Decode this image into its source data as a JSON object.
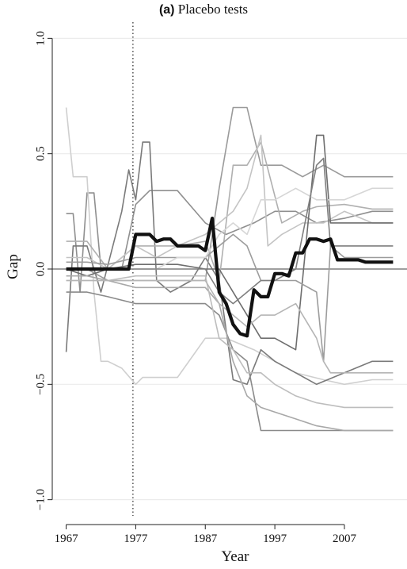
{
  "chart_data": {
    "type": "line",
    "title_prefix": "(a)",
    "title": "Placebo tests",
    "xlabel": "Year",
    "ylabel": "Gap",
    "xlim": [
      1965,
      2016
    ],
    "ylim": [
      -1.07,
      1.07
    ],
    "x_ticks": [
      1967,
      1977,
      1987,
      1997,
      2007
    ],
    "x_tick_labels": [
      "1967",
      "1977",
      "1987",
      "1997",
      "2007"
    ],
    "y_ticks": [
      -1.0,
      -0.5,
      0.0,
      0.5,
      1.0
    ],
    "y_tick_labels": [
      "−1.0",
      "−0.5",
      "0.0",
      "0.5",
      "1.0"
    ],
    "grid": true,
    "reference_lines": {
      "horizontal_y": 0.0,
      "vertical_x": 1976.6
    },
    "main_series": {
      "x": [
        1967,
        1968,
        1969,
        1970,
        1971,
        1972,
        1973,
        1974,
        1975,
        1976,
        1977,
        1978,
        1979,
        1980,
        1981,
        1982,
        1983,
        1984,
        1985,
        1986,
        1987,
        1988,
        1989,
        1990,
        1991,
        1992,
        1993,
        1994,
        1995,
        1996,
        1997,
        1998,
        1999,
        2000,
        2001,
        2002,
        2003,
        2004,
        2005,
        2006,
        2007,
        2008,
        2009,
        2010,
        2011,
        2012,
        2013,
        2014
      ],
      "values": [
        0.0,
        0.0,
        0.0,
        0.0,
        0.0,
        0.0,
        0.0,
        0.0,
        0.0,
        0.0,
        0.15,
        0.15,
        0.15,
        0.12,
        0.13,
        0.13,
        0.1,
        0.1,
        0.1,
        0.1,
        0.08,
        0.22,
        -0.1,
        -0.15,
        -0.24,
        -0.28,
        -0.29,
        -0.09,
        -0.12,
        -0.12,
        -0.02,
        -0.02,
        -0.03,
        0.07,
        0.07,
        0.13,
        0.13,
        0.12,
        0.13,
        0.04,
        0.04,
        0.04,
        0.04,
        0.03,
        0.03,
        0.03,
        0.03,
        0.03
      ]
    },
    "placebo_series": [
      {
        "color": "#8f8f8f",
        "points": [
          [
            1967,
            0.24
          ],
          [
            1968,
            0.24
          ],
          [
            1969,
            -0.1
          ],
          [
            1970,
            0.33
          ],
          [
            1971,
            0.33
          ],
          [
            1972,
            0.0
          ],
          [
            1973,
            0.0
          ],
          [
            1974,
            0.0
          ],
          [
            1975,
            0.0
          ],
          [
            1977,
            0.28
          ],
          [
            1979,
            0.34
          ],
          [
            1983,
            0.34
          ],
          [
            1987,
            0.2
          ],
          [
            1990,
            0.15
          ],
          [
            1994,
            0.2
          ],
          [
            1997,
            0.25
          ],
          [
            2000,
            0.25
          ],
          [
            2003,
            0.2
          ],
          [
            2007,
            0.22
          ],
          [
            2011,
            0.25
          ],
          [
            2014,
            0.25
          ]
        ]
      },
      {
        "color": "#cfcfcf",
        "points": [
          [
            1967,
            0.7
          ],
          [
            1968,
            0.4
          ],
          [
            1970,
            0.4
          ],
          [
            1971,
            -0.1
          ],
          [
            1972,
            -0.4
          ],
          [
            1973,
            -0.4
          ],
          [
            1975,
            -0.43
          ],
          [
            1977,
            -0.5
          ],
          [
            1978,
            -0.47
          ],
          [
            1980,
            -0.47
          ],
          [
            1983,
            -0.47
          ],
          [
            1987,
            -0.3
          ],
          [
            1990,
            -0.3
          ],
          [
            1994,
            -0.35
          ],
          [
            1997,
            -0.4
          ],
          [
            2000,
            -0.45
          ],
          [
            2004,
            -0.48
          ],
          [
            2007,
            -0.5
          ],
          [
            2011,
            -0.48
          ],
          [
            2014,
            -0.48
          ]
        ]
      },
      {
        "color": "#7a7a7a",
        "points": [
          [
            1967,
            -0.36
          ],
          [
            1968,
            0.1
          ],
          [
            1970,
            0.1
          ],
          [
            1972,
            -0.1
          ],
          [
            1975,
            0.25
          ],
          [
            1976,
            0.43
          ],
          [
            1977,
            0.3
          ],
          [
            1978,
            0.55
          ],
          [
            1979,
            0.55
          ],
          [
            1980,
            -0.05
          ],
          [
            1982,
            -0.1
          ],
          [
            1985,
            -0.05
          ],
          [
            1987,
            0.05
          ],
          [
            1989,
            -0.05
          ],
          [
            1991,
            -0.48
          ],
          [
            1993,
            -0.5
          ],
          [
            1995,
            -0.35
          ],
          [
            1997,
            -0.4
          ],
          [
            2000,
            -0.45
          ],
          [
            2003,
            -0.5
          ],
          [
            2007,
            -0.45
          ],
          [
            2011,
            -0.4
          ],
          [
            2014,
            -0.4
          ]
        ]
      },
      {
        "color": "#9a9a9a",
        "points": [
          [
            1967,
            0.0
          ],
          [
            1970,
            0.0
          ],
          [
            1973,
            -0.05
          ],
          [
            1977,
            -0.05
          ],
          [
            1980,
            -0.05
          ],
          [
            1983,
            -0.05
          ],
          [
            1987,
            -0.05
          ],
          [
            1989,
            0.35
          ],
          [
            1991,
            0.7
          ],
          [
            1993,
            0.7
          ],
          [
            1995,
            0.45
          ],
          [
            1998,
            0.45
          ],
          [
            2001,
            0.4
          ],
          [
            2004,
            0.45
          ],
          [
            2007,
            0.4
          ],
          [
            2011,
            0.4
          ],
          [
            2014,
            0.4
          ]
        ]
      },
      {
        "color": "#b0b0b0",
        "points": [
          [
            1967,
            0.12
          ],
          [
            1970,
            0.12
          ],
          [
            1973,
            0.0
          ],
          [
            1977,
            0.1
          ],
          [
            1980,
            0.1
          ],
          [
            1983,
            0.1
          ],
          [
            1987,
            0.12
          ],
          [
            1989,
            -0.05
          ],
          [
            1991,
            0.45
          ],
          [
            1993,
            0.45
          ],
          [
            1995,
            0.55
          ],
          [
            1998,
            0.2
          ],
          [
            2001,
            0.25
          ],
          [
            2003,
            0.27
          ],
          [
            2007,
            0.28
          ],
          [
            2011,
            0.26
          ],
          [
            2014,
            0.26
          ]
        ]
      },
      {
        "color": "#c4c4c4",
        "points": [
          [
            1967,
            0.05
          ],
          [
            1970,
            0.05
          ],
          [
            1973,
            0.0
          ],
          [
            1977,
            0.1
          ],
          [
            1980,
            0.05
          ],
          [
            1983,
            0.1
          ],
          [
            1987,
            0.15
          ],
          [
            1989,
            0.2
          ],
          [
            1991,
            0.25
          ],
          [
            1993,
            0.35
          ],
          [
            1995,
            0.58
          ],
          [
            1996,
            0.1
          ],
          [
            1998,
            0.15
          ],
          [
            2001,
            0.2
          ],
          [
            2004,
            0.2
          ],
          [
            2007,
            0.25
          ],
          [
            2011,
            0.2
          ],
          [
            2014,
            0.2
          ]
        ]
      },
      {
        "color": "#6e6e6e",
        "points": [
          [
            1967,
            0.0
          ],
          [
            1970,
            -0.03
          ],
          [
            1973,
            0.0
          ],
          [
            1977,
            0.02
          ],
          [
            1980,
            0.02
          ],
          [
            1983,
            0.02
          ],
          [
            1987,
            0.0
          ],
          [
            1989,
            0.0
          ],
          [
            1991,
            -0.1
          ],
          [
            1993,
            -0.2
          ],
          [
            1995,
            -0.3
          ],
          [
            1997,
            -0.3
          ],
          [
            2000,
            -0.35
          ],
          [
            2003,
            0.58
          ],
          [
            2004,
            0.58
          ],
          [
            2005,
            0.2
          ],
          [
            2007,
            0.2
          ],
          [
            2010,
            0.2
          ],
          [
            2014,
            0.2
          ]
        ]
      },
      {
        "color": "#8a8a8a",
        "points": [
          [
            1967,
            -0.1
          ],
          [
            1970,
            -0.1
          ],
          [
            1973,
            -0.12
          ],
          [
            1977,
            -0.15
          ],
          [
            1980,
            -0.15
          ],
          [
            1983,
            -0.15
          ],
          [
            1987,
            -0.15
          ],
          [
            1989,
            -0.2
          ],
          [
            1991,
            -0.35
          ],
          [
            1993,
            -0.4
          ],
          [
            1995,
            -0.7
          ],
          [
            1997,
            -0.7
          ],
          [
            2000,
            -0.7
          ],
          [
            2003,
            -0.7
          ],
          [
            2007,
            -0.7
          ],
          [
            2011,
            -0.7
          ],
          [
            2014,
            -0.7
          ]
        ]
      },
      {
        "color": "#a8a8a8",
        "points": [
          [
            1967,
            -0.03
          ],
          [
            1970,
            -0.03
          ],
          [
            1973,
            -0.05
          ],
          [
            1977,
            -0.08
          ],
          [
            1980,
            -0.08
          ],
          [
            1983,
            -0.08
          ],
          [
            1987,
            -0.08
          ],
          [
            1989,
            -0.15
          ],
          [
            1991,
            -0.4
          ],
          [
            1993,
            -0.55
          ],
          [
            1995,
            -0.6
          ],
          [
            1997,
            -0.62
          ],
          [
            2000,
            -0.65
          ],
          [
            2003,
            -0.68
          ],
          [
            2007,
            -0.7
          ],
          [
            2011,
            -0.7
          ],
          [
            2014,
            -0.7
          ]
        ]
      },
      {
        "color": "#9c9c9c",
        "points": [
          [
            1967,
            0.03
          ],
          [
            1970,
            0.03
          ],
          [
            1973,
            0.02
          ],
          [
            1977,
            0.05
          ],
          [
            1980,
            0.05
          ],
          [
            1983,
            0.05
          ],
          [
            1987,
            0.05
          ],
          [
            1989,
            0.1
          ],
          [
            1991,
            0.15
          ],
          [
            1993,
            0.1
          ],
          [
            1995,
            -0.05
          ],
          [
            1997,
            -0.05
          ],
          [
            2000,
            -0.05
          ],
          [
            2003,
            -0.1
          ],
          [
            2004,
            -0.4
          ],
          [
            2005,
            0.1
          ],
          [
            2007,
            0.05
          ],
          [
            2011,
            0.05
          ],
          [
            2014,
            0.05
          ]
        ]
      },
      {
        "color": "#bdbdbd",
        "points": [
          [
            1967,
            -0.05
          ],
          [
            1970,
            -0.05
          ],
          [
            1973,
            -0.05
          ],
          [
            1977,
            -0.03
          ],
          [
            1980,
            -0.03
          ],
          [
            1983,
            -0.03
          ],
          [
            1987,
            -0.03
          ],
          [
            1989,
            -0.3
          ],
          [
            1991,
            -0.35
          ],
          [
            1993,
            -0.45
          ],
          [
            1995,
            -0.45
          ],
          [
            1997,
            -0.5
          ],
          [
            2000,
            -0.55
          ],
          [
            2003,
            -0.58
          ],
          [
            2007,
            -0.6
          ],
          [
            2011,
            -0.6
          ],
          [
            2014,
            -0.6
          ]
        ]
      },
      {
        "color": "#d6d6d6",
        "points": [
          [
            1967,
            0.0
          ],
          [
            1970,
            0.0
          ],
          [
            1973,
            0.0
          ],
          [
            1977,
            0.0
          ],
          [
            1980,
            0.0
          ],
          [
            1983,
            0.05
          ],
          [
            1987,
            0.05
          ],
          [
            1989,
            0.15
          ],
          [
            1991,
            0.2
          ],
          [
            1993,
            0.15
          ],
          [
            1995,
            0.3
          ],
          [
            1997,
            0.3
          ],
          [
            2000,
            0.35
          ],
          [
            2003,
            0.3
          ],
          [
            2007,
            0.3
          ],
          [
            2011,
            0.35
          ],
          [
            2014,
            0.35
          ]
        ]
      },
      {
        "color": "#7f7f7f",
        "points": [
          [
            1967,
            0.0
          ],
          [
            1970,
            0.0
          ],
          [
            1973,
            0.0
          ],
          [
            1977,
            0.0
          ],
          [
            1980,
            0.0
          ],
          [
            1983,
            0.0
          ],
          [
            1987,
            0.0
          ],
          [
            1989,
            -0.1
          ],
          [
            1991,
            -0.15
          ],
          [
            1993,
            -0.1
          ],
          [
            1995,
            -0.05
          ],
          [
            1997,
            -0.05
          ],
          [
            2000,
            0.0
          ],
          [
            2003,
            0.45
          ],
          [
            2004,
            0.48
          ],
          [
            2005,
            0.1
          ],
          [
            2007,
            0.1
          ],
          [
            2011,
            0.1
          ],
          [
            2014,
            0.1
          ]
        ]
      },
      {
        "color": "#b5b5b5",
        "points": [
          [
            1967,
            -0.05
          ],
          [
            1970,
            -0.05
          ],
          [
            1973,
            -0.05
          ],
          [
            1977,
            -0.05
          ],
          [
            1980,
            -0.05
          ],
          [
            1983,
            -0.05
          ],
          [
            1987,
            -0.05
          ],
          [
            1989,
            -0.15
          ],
          [
            1991,
            -0.2
          ],
          [
            1993,
            -0.25
          ],
          [
            1995,
            -0.2
          ],
          [
            1997,
            -0.2
          ],
          [
            2000,
            -0.15
          ],
          [
            2003,
            -0.3
          ],
          [
            2004,
            -0.4
          ],
          [
            2005,
            -0.45
          ],
          [
            2007,
            -0.45
          ],
          [
            2011,
            -0.45
          ],
          [
            2014,
            -0.45
          ]
        ]
      }
    ]
  }
}
